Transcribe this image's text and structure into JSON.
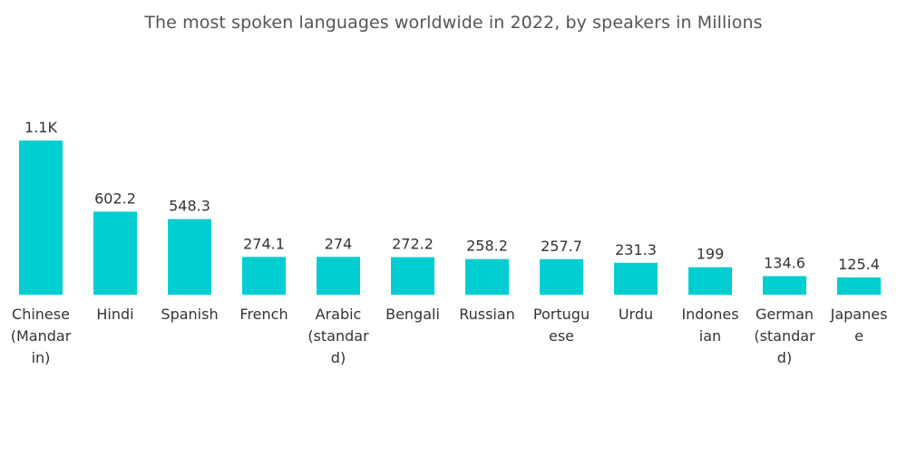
{
  "title": "The most spoken languages worldwide in 2022, by speakers in Millions",
  "chart_data": {
    "type": "bar",
    "title": "The most spoken languages worldwide in 2022, by speakers in Millions",
    "xlabel": "",
    "ylabel": "",
    "categories": [
      "Chinese (Mandarin)",
      "Hindi",
      "Spanish",
      "French",
      "Arabic (standard)",
      "Bengali",
      "Russian",
      "Portuguese",
      "Urdu",
      "Indonesian",
      "German (standard)",
      "Japanese"
    ],
    "category_label_lines": [
      [
        "Chinese",
        "(Mandar",
        "in)"
      ],
      [
        "Hindi"
      ],
      [
        "Spanish"
      ],
      [
        "French"
      ],
      [
        "Arabic",
        "(standar",
        "d)"
      ],
      [
        "Bengali"
      ],
      [
        "Russian"
      ],
      [
        "Portugu",
        "ese"
      ],
      [
        "Urdu"
      ],
      [
        "Indones",
        "ian"
      ],
      [
        "German",
        "(standar",
        "d)"
      ],
      [
        "Japanes",
        "e"
      ]
    ],
    "values": [
      1118,
      602.2,
      548.3,
      274.1,
      274,
      272.2,
      258.2,
      257.7,
      231.3,
      199,
      134.6,
      125.4
    ],
    "data_labels": [
      "1.1K",
      "602.2",
      "548.3",
      "274.1",
      "274",
      "272.2",
      "258.2",
      "257.7",
      "231.3",
      "199",
      "134.6",
      "125.4"
    ],
    "ylim": [
      0,
      1118
    ],
    "bar_color": "#00CED1",
    "grid": false,
    "legend": "none"
  }
}
